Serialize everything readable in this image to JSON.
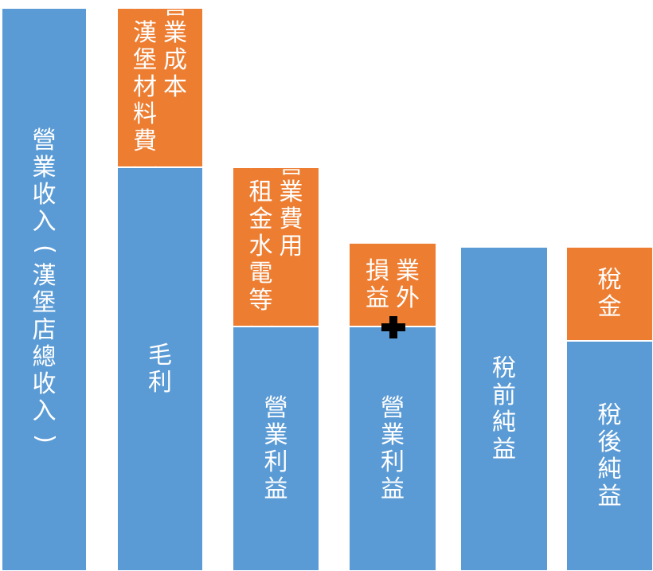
{
  "blocks": {
    "revenue": {
      "text": "營業收入(漢堡店總收入)",
      "color": "#5b9bd5"
    },
    "gross_profit": {
      "text": "毛利",
      "color": "#5b9bd5"
    },
    "cost_col1": {
      "text": "營業成本",
      "color": "#ed7d31"
    },
    "cost_col2": {
      "text": "(漢堡材料費)",
      "color": "#ed7d31"
    },
    "opex_col1": {
      "text": "營業費用",
      "color": "#ed7d31"
    },
    "opex_col2": {
      "text": "(租金水電等)",
      "color": "#ed7d31"
    },
    "op_profit_a": {
      "text": "營業利益",
      "color": "#5b9bd5"
    },
    "nonop_col1": {
      "text": "業外",
      "color": "#ed7d31"
    },
    "nonop_col2": {
      "text": "損益",
      "color": "#ed7d31"
    },
    "op_profit_b": {
      "text": "營業利益",
      "color": "#5b9bd5"
    },
    "pretax": {
      "text": "稅前純益",
      "color": "#5b9bd5"
    },
    "tax": {
      "text": "稅金",
      "color": "#ed7d31"
    },
    "aftertax": {
      "text": "稅後純益",
      "color": "#5b9bd5"
    }
  },
  "plus_icon": "plus-icon"
}
